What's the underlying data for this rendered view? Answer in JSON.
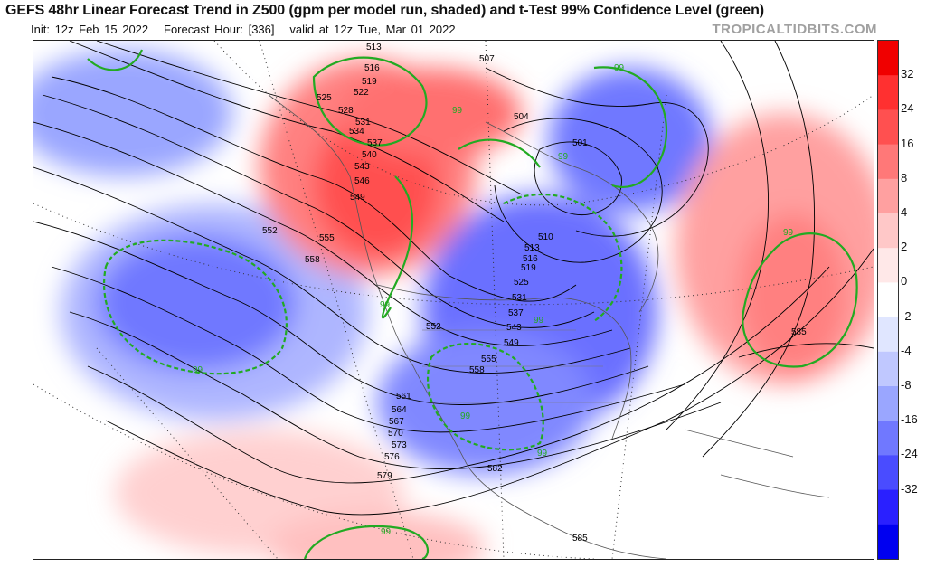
{
  "header": {
    "title": "GEFS 48hr Linear Forecast Trend in Z500 (gpm per model run, shaded) and t-Test 99% Confidence Level (green)",
    "init": "Init: 12z Feb 15 2022",
    "forecast_hour": "Forecast Hour: [336]",
    "valid": "valid at 12z Tue, Mar 01 2022",
    "brand": "TROPICALTIDBITS.COM"
  },
  "colorbar": {
    "ticks": [
      "32",
      "24",
      "16",
      "8",
      "4",
      "2",
      "0",
      "-2",
      "-4",
      "-8",
      "-16",
      "-24",
      "-32"
    ],
    "colors_top_to_bottom": [
      "#f00000",
      "#ff3030",
      "#ff5050",
      "#ff7878",
      "#ffa0a0",
      "#ffc8c8",
      "#ffe8e8",
      "#ffffff",
      "#e0e6ff",
      "#c0c8ff",
      "#9aa6ff",
      "#7078ff",
      "#4a4cff",
      "#2a20ff",
      "#0000f0"
    ]
  },
  "map": {
    "contour_labels": {
      "west_stack": [
        "513",
        "516",
        "519",
        "522",
        "525",
        "528",
        "531",
        "534",
        "537",
        "540",
        "543",
        "546",
        "549"
      ],
      "central": [
        "552",
        "555",
        "558"
      ],
      "north": [
        "507",
        "504",
        "501",
        "510"
      ],
      "east_stack": [
        "513",
        "516",
        "519",
        "525",
        "531",
        "537",
        "543",
        "549",
        "555",
        "558"
      ],
      "south": [
        "552",
        "561",
        "564",
        "567",
        "570",
        "573",
        "576",
        "579",
        "582",
        "585"
      ],
      "atlantic": [
        "585"
      ]
    },
    "confidence_label": "99",
    "colors": {
      "positive": "#ff4040",
      "negative": "#3a3aff",
      "confidence": "#22aa22",
      "contour": "#000000"
    }
  }
}
